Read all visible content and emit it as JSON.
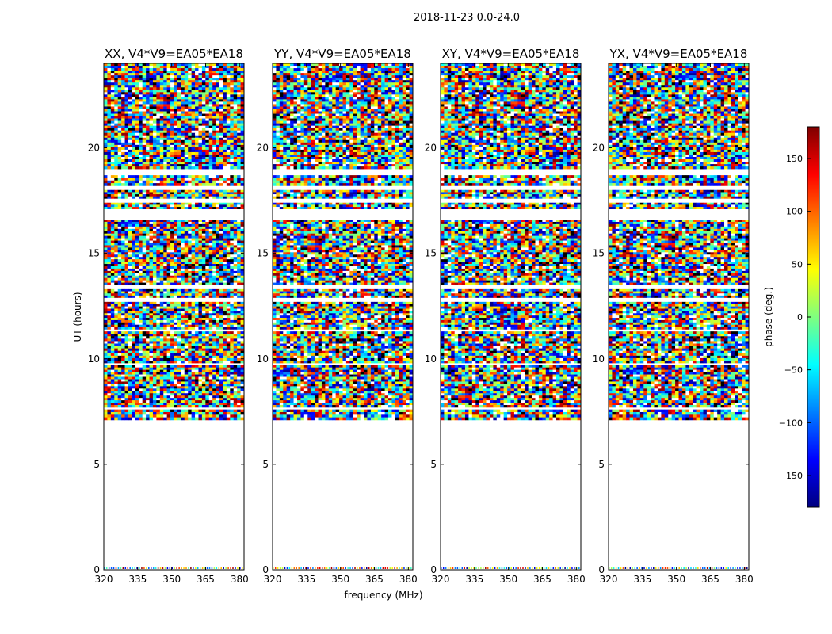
{
  "figure": {
    "suptitle": "2018-11-23 0.0-24.0",
    "xlabel": "frequency (MHz)",
    "ylabel": "UT (hours)"
  },
  "chart_data": {
    "type": "heatmap",
    "colormap": "jet",
    "xlim": [
      320,
      382
    ],
    "ylim": [
      0,
      24
    ],
    "xticks": [
      320,
      335,
      350,
      365,
      380
    ],
    "yticks": [
      0,
      5,
      10,
      15,
      20
    ],
    "colorbar": {
      "label": "phase (deg.)",
      "range": [
        -180,
        180
      ],
      "ticks": [
        150,
        100,
        50,
        0,
        -50,
        -100,
        -150
      ],
      "tick_labels": [
        "150",
        "100",
        "50",
        "0",
        "−50",
        "−100",
        "−150"
      ]
    },
    "data_coverage_ut_hours": [
      [
        7.1,
        7.6
      ],
      [
        7.7,
        9.7
      ],
      [
        9.8,
        11.3
      ],
      [
        11.4,
        12.7
      ],
      [
        12.9,
        13.3
      ],
      [
        13.5,
        16.6
      ],
      [
        17.1,
        17.4
      ],
      [
        17.6,
        18.0
      ],
      [
        18.2,
        18.7
      ],
      [
        19.0,
        24.0
      ]
    ],
    "panels": [
      {
        "title": "XX, V4*V9=EA05*EA18",
        "polarization": "XX"
      },
      {
        "title": "YY, V4*V9=EA05*EA18",
        "polarization": "YY"
      },
      {
        "title": "XY, V4*V9=EA05*EA18",
        "polarization": "XY"
      },
      {
        "title": "YX, V4*V9=EA05*EA18",
        "polarization": "YX"
      }
    ]
  }
}
